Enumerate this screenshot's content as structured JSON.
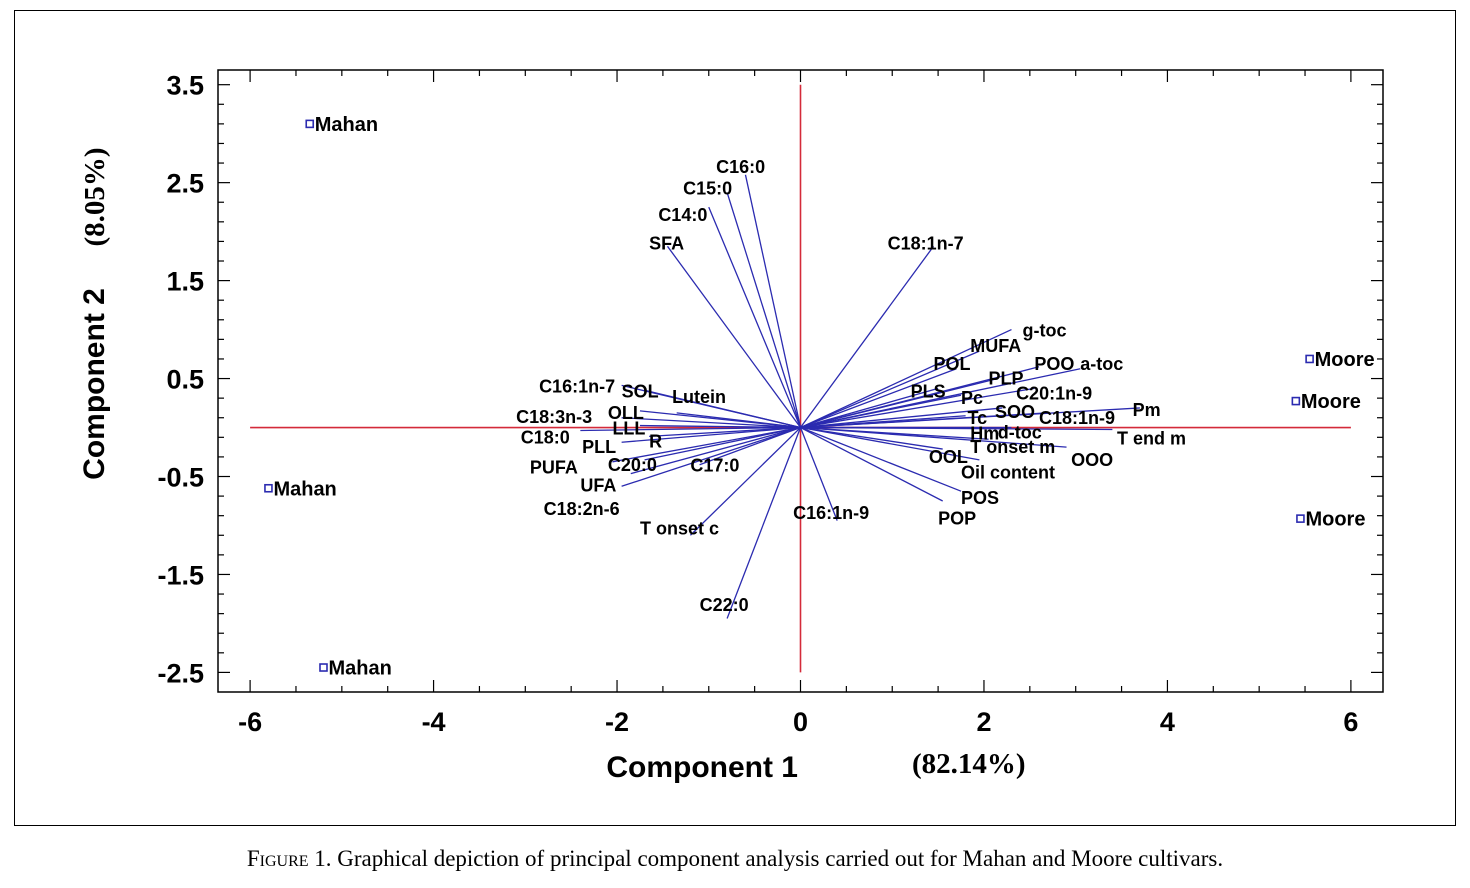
{
  "caption": {
    "lead": "Figure 1.",
    "text": " Graphical depiction of principal component analysis carried out for Mahan and Moore cultivars."
  },
  "colors": {
    "vector": "#2b2bb0",
    "reference_axis": "#d42a3a",
    "marker": "#2b2bb0",
    "frame": "#000000"
  },
  "chart_data": {
    "type": "scatter",
    "subtype": "biplot",
    "title": "",
    "xlabel": "Component 1",
    "xlabel_pct": "(82.14%)",
    "ylabel": "Component 2",
    "ylabel_pct": "(8.05%)",
    "xlim": [
      -6.35,
      6.35
    ],
    "ylim": [
      -2.7,
      3.65
    ],
    "xticks": [
      -6,
      -4,
      -2,
      0,
      2,
      4,
      6
    ],
    "xtick_labels": [
      "-6",
      "-4",
      "-2",
      "0",
      "2",
      "4",
      "6"
    ],
    "yticks": [
      3.5,
      2.5,
      1.5,
      0.5,
      -0.5,
      -1.5,
      -2.5
    ],
    "ytick_labels": [
      "3.5",
      "2.5",
      "1.5",
      "0.5",
      "-0.5",
      "-1.5",
      "-2.5"
    ],
    "reference_lines": {
      "x": 0,
      "y": 0,
      "x_extent": [
        -6,
        6
      ],
      "y_extent": [
        -2.5,
        3.5
      ]
    },
    "observations": [
      {
        "label": "Mahan",
        "x": -5.35,
        "y": 3.1
      },
      {
        "label": "Mahan",
        "x": -5.8,
        "y": -0.62
      },
      {
        "label": "Mahan",
        "x": -5.2,
        "y": -2.45
      },
      {
        "label": "Moore",
        "x": 5.55,
        "y": 0.7
      },
      {
        "label": "Moore",
        "x": 5.4,
        "y": 0.27
      },
      {
        "label": "Moore",
        "x": 5.45,
        "y": -0.93
      }
    ],
    "variables": [
      {
        "label": "C16:0",
        "x": -0.6,
        "y": 2.58,
        "lx": -0.92,
        "ly": 2.67
      },
      {
        "label": "C15:0",
        "x": -0.8,
        "y": 2.4,
        "lx": -1.28,
        "ly": 2.45
      },
      {
        "label": "C14:0",
        "x": -1.0,
        "y": 2.25,
        "lx": -1.55,
        "ly": 2.18
      },
      {
        "label": "SFA",
        "x": -1.45,
        "y": 1.85,
        "lx": -1.65,
        "ly": 1.89
      },
      {
        "label": "C18:1n-7",
        "x": 1.45,
        "y": 1.85,
        "lx": 0.95,
        "ly": 1.89
      },
      {
        "label": "g-toc",
        "x": 2.3,
        "y": 1.0,
        "lx": 2.42,
        "ly": 1.0
      },
      {
        "label": "MUFA",
        "x": 1.95,
        "y": 0.78,
        "lx": 1.85,
        "ly": 0.84
      },
      {
        "label": "POL",
        "x": 1.7,
        "y": 0.6,
        "lx": 1.45,
        "ly": 0.66
      },
      {
        "label": "POO",
        "x": 2.6,
        "y": 0.62,
        "lx": 2.55,
        "ly": 0.66
      },
      {
        "label": "a-toc",
        "x": 3.05,
        "y": 0.6,
        "lx": 3.05,
        "ly": 0.66
      },
      {
        "label": "PLP",
        "x": 2.15,
        "y": 0.5,
        "lx": 2.05,
        "ly": 0.51
      },
      {
        "label": "PLS",
        "x": 1.5,
        "y": 0.4,
        "lx": 1.2,
        "ly": 0.38
      },
      {
        "label": "Pc",
        "x": 1.75,
        "y": 0.33,
        "lx": 1.75,
        "ly": 0.31
      },
      {
        "label": "C20:1n-9",
        "x": 2.55,
        "y": 0.4,
        "lx": 2.35,
        "ly": 0.36
      },
      {
        "label": "Pm",
        "x": 3.7,
        "y": 0.2,
        "lx": 3.62,
        "ly": 0.19
      },
      {
        "label": "SOO",
        "x": 2.2,
        "y": 0.2,
        "lx": 2.12,
        "ly": 0.17
      },
      {
        "label": "Tc",
        "x": 1.8,
        "y": 0.12,
        "lx": 1.82,
        "ly": 0.11
      },
      {
        "label": "C18:1n-9",
        "x": 2.7,
        "y": 0.15,
        "lx": 2.6,
        "ly": 0.11
      },
      {
        "label": "d-toc",
        "x": 2.3,
        "y": 0.0,
        "lx": 2.15,
        "ly": -0.04
      },
      {
        "label": "Hm",
        "x": 1.85,
        "y": 0.0,
        "lx": 1.85,
        "ly": -0.05
      },
      {
        "label": "T end m",
        "x": 3.4,
        "y": -0.02,
        "lx": 3.45,
        "ly": -0.1
      },
      {
        "label": "T onset m",
        "x": 2.05,
        "y": -0.12,
        "lx": 1.85,
        "ly": -0.19
      },
      {
        "label": "OOL",
        "x": 1.55,
        "y": -0.22,
        "lx": 1.4,
        "ly": -0.29
      },
      {
        "label": "OOO",
        "x": 2.9,
        "y": -0.2,
        "lx": 2.95,
        "ly": -0.32
      },
      {
        "label": "Oil content",
        "x": 1.95,
        "y": -0.33,
        "lx": 1.75,
        "ly": -0.45
      },
      {
        "label": "POS",
        "x": 1.75,
        "y": -0.65,
        "lx": 1.75,
        "ly": -0.71
      },
      {
        "label": "POP",
        "x": 1.55,
        "y": -0.75,
        "lx": 1.5,
        "ly": -0.92
      },
      {
        "label": "C16:1n-9",
        "x": 0.4,
        "y": -0.95,
        "lx": -0.08,
        "ly": -0.86
      },
      {
        "label": "C22:0",
        "x": -0.8,
        "y": -1.95,
        "lx": -1.1,
        "ly": -1.8
      },
      {
        "label": "T onset c",
        "x": -1.2,
        "y": -1.1,
        "lx": -1.75,
        "ly": -1.02
      },
      {
        "label": "C17:0",
        "x": -1.1,
        "y": -0.38,
        "lx": -1.2,
        "ly": -0.38
      },
      {
        "label": "C16:1n-7",
        "x": -1.95,
        "y": 0.43,
        "lx": -2.85,
        "ly": 0.43
      },
      {
        "label": "SOL",
        "x": -1.7,
        "y": 0.38,
        "lx": -1.95,
        "ly": 0.38
      },
      {
        "label": "Lutein",
        "x": -1.35,
        "y": 0.15,
        "lx": -1.4,
        "ly": 0.32
      },
      {
        "label": "OLL",
        "x": -1.75,
        "y": 0.17,
        "lx": -2.1,
        "ly": 0.16
      },
      {
        "label": "C18:3n-3",
        "x": -1.95,
        "y": 0.1,
        "lx": -3.1,
        "ly": 0.12
      },
      {
        "label": "LLL",
        "x": -1.75,
        "y": 0.02,
        "lx": -2.05,
        "ly": 0.0
      },
      {
        "label": "C18:0",
        "x": -2.4,
        "y": -0.03,
        "lx": -3.05,
        "ly": -0.09
      },
      {
        "label": "R",
        "x": -1.65,
        "y": -0.09,
        "lx": -1.65,
        "ly": -0.13
      },
      {
        "label": "PLL",
        "x": -1.95,
        "y": -0.15,
        "lx": -2.38,
        "ly": -0.19
      },
      {
        "label": "C20:0",
        "x": -1.7,
        "y": -0.33,
        "lx": -2.1,
        "ly": -0.37
      },
      {
        "label": "PUFA",
        "x": -2.05,
        "y": -0.35,
        "lx": -2.95,
        "ly": -0.4
      },
      {
        "label": "UFA",
        "x": -1.85,
        "y": -0.47,
        "lx": -2.4,
        "ly": -0.58
      },
      {
        "label": "C18:2n-6",
        "x": -1.95,
        "y": -0.6,
        "lx": -2.8,
        "ly": -0.82
      }
    ]
  }
}
